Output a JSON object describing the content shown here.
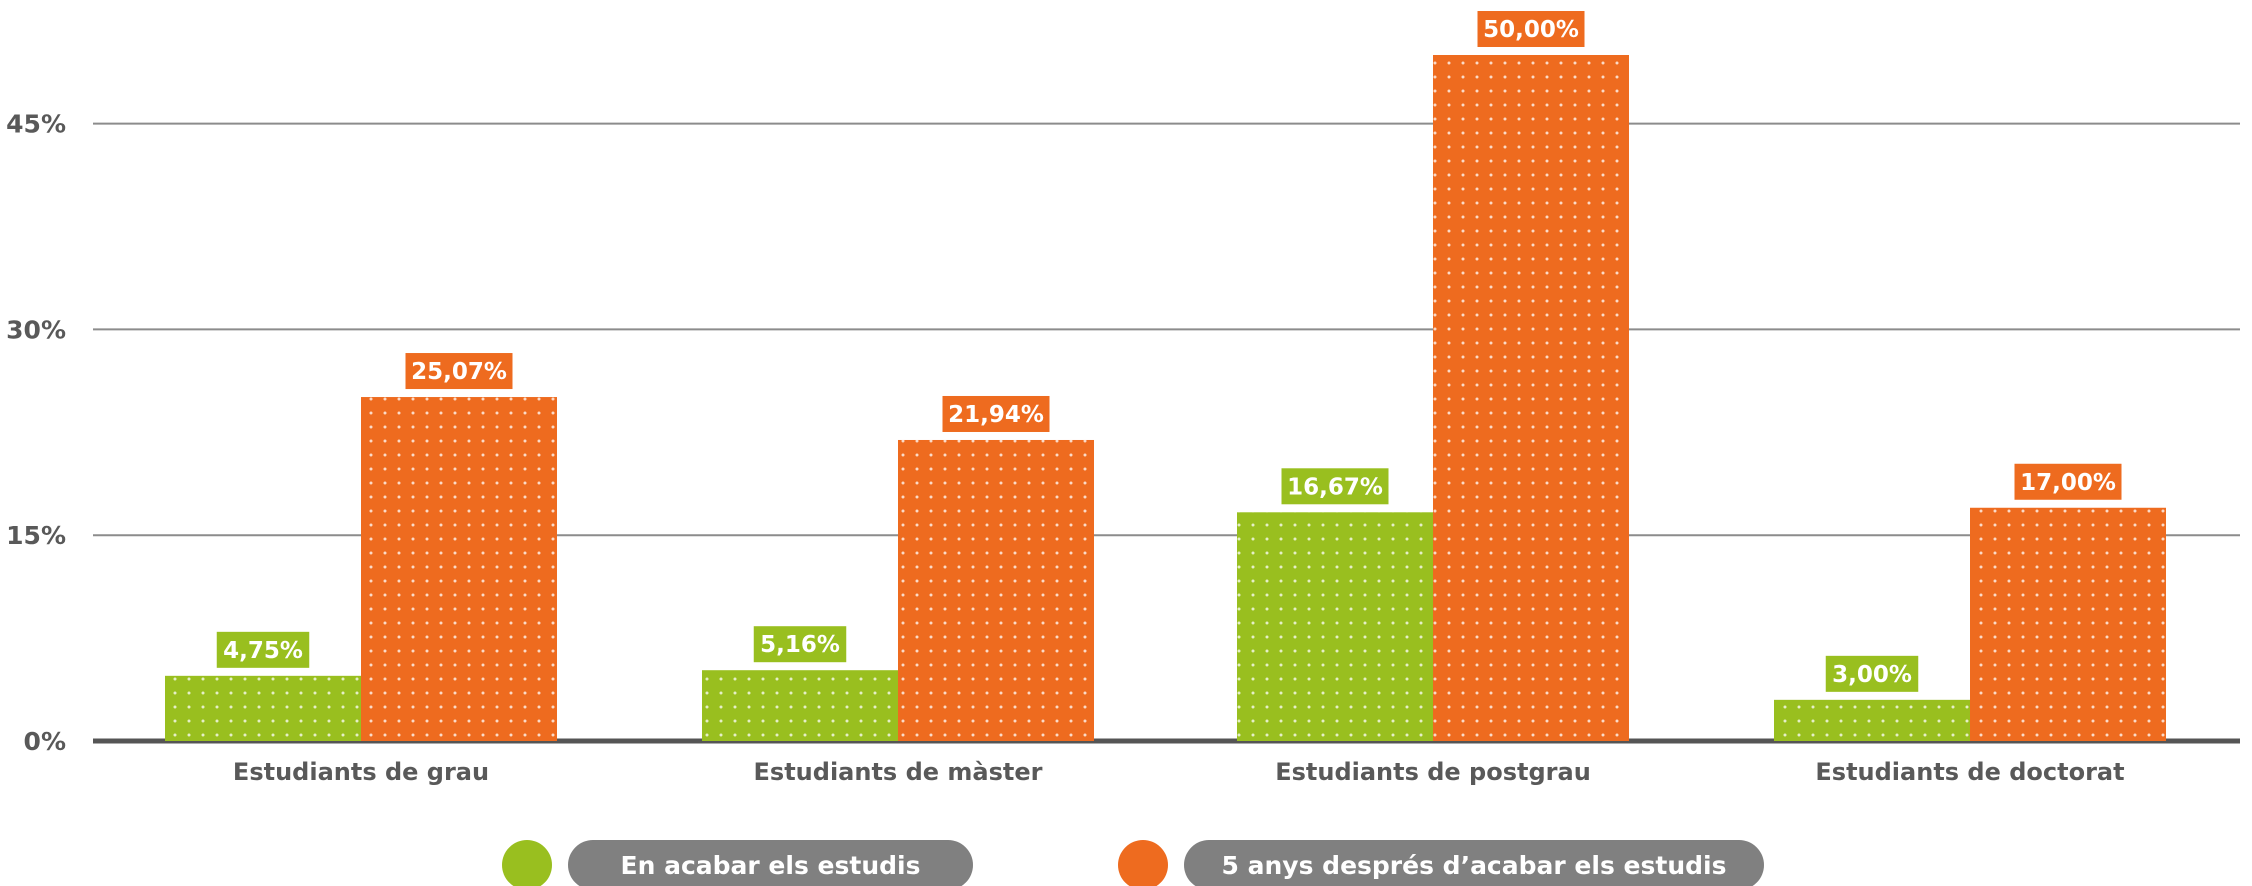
{
  "chart_data": {
    "type": "bar",
    "categories": [
      "Estudiants de grau",
      "Estudiants de màster",
      "Estudiants de postgrau",
      "Estudiants de doctorat"
    ],
    "series": [
      {
        "name": "En acabar els estudis",
        "values": [
          4.75,
          5.16,
          16.67,
          3.0
        ],
        "labels": [
          "4,75%",
          "5,16%",
          "16,67%",
          "3,00%"
        ]
      },
      {
        "name": "5 anys després d’acabar els estudis",
        "values": [
          25.07,
          21.94,
          50.0,
          17.0
        ],
        "labels": [
          "25,07%",
          "21,94%",
          "50,00%",
          "17,00%"
        ]
      }
    ],
    "y_ticks": [
      0,
      15,
      30,
      45
    ],
    "y_tick_labels": [
      "0%",
      "15%",
      "30%",
      "45%"
    ],
    "ylim": [
      0,
      50
    ],
    "grid": true,
    "legend_position": "bottom",
    "colors": {
      "series": [
        "#99bf1f",
        "#ee6b1f"
      ],
      "gridline": "#8c8c8c",
      "baseline": "#555555",
      "axis_text": "#595959",
      "legend_pill": "#808080",
      "label_text": "#ffffff"
    }
  }
}
